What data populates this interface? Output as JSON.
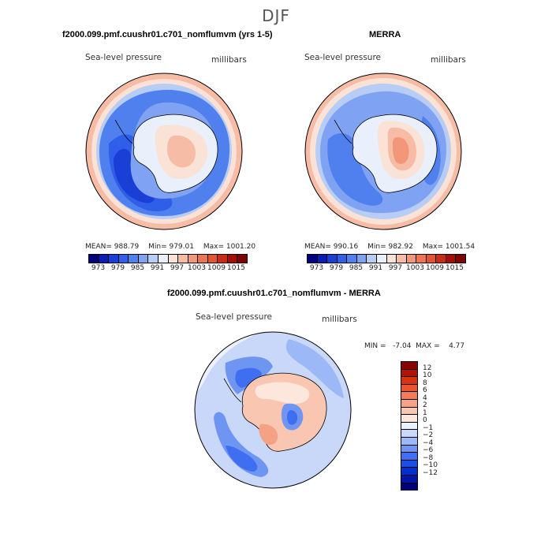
{
  "figure": {
    "title": "DJF"
  },
  "colors": {
    "pressure_scale": [
      "#00007f",
      "#0a1cb4",
      "#1a3fd6",
      "#2f5ee8",
      "#5080ee",
      "#7fa3f2",
      "#b7cdf6",
      "#eaf0fb",
      "#fbe2d6",
      "#f6bca5",
      "#f29779",
      "#ef7552",
      "#e55331",
      "#cc2a12",
      "#a70d05",
      "#7f0000"
    ],
    "difference_scale": [
      "#00007f",
      "#0016a8",
      "#0030d0",
      "#1a4fe6",
      "#3f6ff0",
      "#6f95f3",
      "#9db8f6",
      "#c9d8f9",
      "#ebf2fd",
      "#fde6dc",
      "#f9c6b2",
      "#f5a185",
      "#f27b58",
      "#ea5530",
      "#d9320f",
      "#b31104",
      "#8a0000"
    ]
  },
  "chart_data": [
    {
      "type": "heatmap",
      "projection": "south-polar-stereographic",
      "title": "f2000.099.pmf.cuushr01.c701_nomflumvm (yrs 1-5)",
      "variable_label": "Sea-level pressure",
      "units": "millibars",
      "stats": {
        "mean_label": "MEAN= 988.79",
        "min_label": "Min= 979.01",
        "max_label": "Max= 1001.20",
        "mean": 988.79,
        "min": 979.01,
        "max": 1001.2
      },
      "colorbar": {
        "orientation": "horizontal",
        "ticks": [
          "973",
          "979",
          "985",
          "991",
          "997",
          "1003",
          "1009",
          "1015"
        ]
      }
    },
    {
      "type": "heatmap",
      "projection": "south-polar-stereographic",
      "title": "MERRA",
      "variable_label": "Sea-level pressure",
      "units": "millibars",
      "stats": {
        "mean_label": "MEAN= 990.16",
        "min_label": "Min= 982.92",
        "max_label": "Max= 1001.54",
        "mean": 990.16,
        "min": 982.92,
        "max": 1001.54
      },
      "colorbar": {
        "orientation": "horizontal",
        "ticks": [
          "973",
          "979",
          "985",
          "991",
          "997",
          "1003",
          "1009",
          "1015"
        ]
      }
    },
    {
      "type": "heatmap",
      "projection": "south-polar-stereographic",
      "title": "f2000.099.pmf.cuushr01.c701_nomflumvm - MERRA",
      "variable_label": "Sea-level pressure",
      "units": "millibars",
      "stats": {
        "minmax_label": "MIN =   -7.04  MAX =    4.77",
        "min": -7.04,
        "max": 4.77
      },
      "colorbar": {
        "orientation": "vertical",
        "ticks": [
          "12",
          "10",
          "8",
          "6",
          "4",
          "2",
          "1",
          "0",
          "−1",
          "−2",
          "−4",
          "−6",
          "−8",
          "−10",
          "−12"
        ]
      }
    }
  ]
}
